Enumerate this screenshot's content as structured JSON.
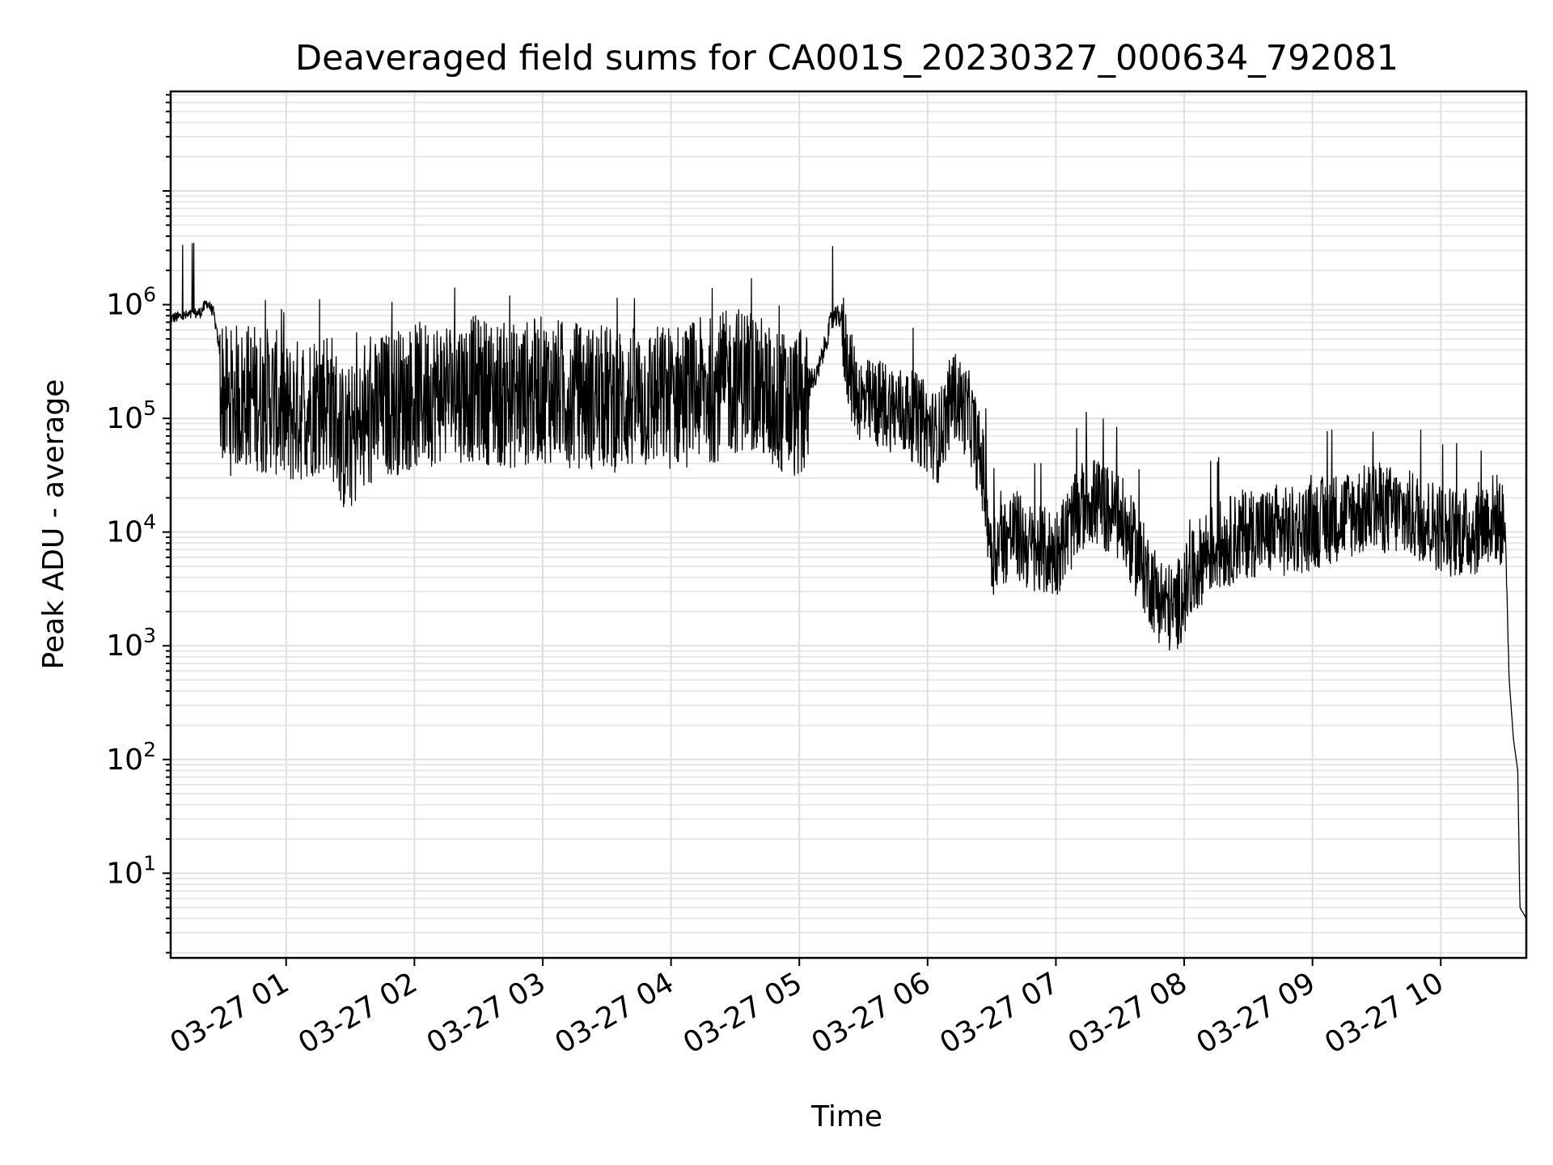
{
  "chart_data": {
    "type": "line",
    "title": "Deaveraged field sums for CA001S_20230327_000634_792081",
    "xlabel": "Time",
    "ylabel": "Peak ADU - average",
    "yscale": "log",
    "ylim": [
      1.8,
      75000000
    ],
    "xlim": [
      "03-27 00:06",
      "03-27 10:40"
    ],
    "grid": true,
    "line_color": "#000000",
    "x_tick_labels": [
      "03-27 01",
      "03-27 02",
      "03-27 03",
      "03-27 04",
      "03-27 05",
      "03-27 06",
      "03-27 07",
      "03-27 08",
      "03-27 09",
      "03-27 10"
    ],
    "y_tick_labels": [
      {
        "base": "10",
        "exp": "1",
        "value": 10
      },
      {
        "base": "10",
        "exp": "2",
        "value": 100
      },
      {
        "base": "10",
        "exp": "3",
        "value": 1000
      },
      {
        "base": "10",
        "exp": "4",
        "value": 10000
      },
      {
        "base": "10",
        "exp": "5",
        "value": 100000
      },
      {
        "base": "10",
        "exp": "6",
        "value": 1000000
      }
    ],
    "series": [
      {
        "x": [
          "03-27 00:06",
          "03-27 00:15",
          "03-27 00:20",
          "03-27 00:23",
          "03-27 00:26",
          "03-27 00:29",
          "03-27 00:33",
          "03-27 00:36",
          "03-27 00:40",
          "03-27 00:43",
          "03-27 00:46",
          "03-27 00:49",
          "03-27 00:53",
          "03-27 01:00",
          "03-27 01:10",
          "03-27 01:20",
          "03-27 01:27",
          "03-27 01:35",
          "03-27 01:45",
          "03-27 02:00",
          "03-27 02:15",
          "03-27 02:30",
          "03-27 02:45",
          "03-27 03:00",
          "03-27 03:20",
          "03-27 03:40",
          "03-27 04:00",
          "03-27 04:20",
          "03-27 04:35",
          "03-27 04:40",
          "03-27 04:45",
          "03-27 04:55",
          "03-27 05:08",
          "03-27 05:15",
          "03-27 05:20",
          "03-27 05:25",
          "03-27 05:30",
          "03-27 05:40",
          "03-27 05:55",
          "03-27 06:05",
          "03-27 06:12",
          "03-27 06:20",
          "03-27 06:26",
          "03-27 06:30",
          "03-27 06:40",
          "03-27 06:50",
          "03-27 07:00",
          "03-27 07:15",
          "03-27 07:30",
          "03-27 07:40",
          "03-27 07:48",
          "03-27 07:55",
          "03-27 08:10",
          "03-27 08:30",
          "03-27 08:50",
          "03-27 09:10",
          "03-27 09:30",
          "03-27 09:50",
          "03-27 10:05",
          "03-27 10:15",
          "03-27 10:23",
          "03-27 10:27",
          "03-27 10:30",
          "03-27 10:32",
          "03-27 10:34",
          "03-27 10:36",
          "03-27 10:37",
          "03-27 10:40"
        ],
        "values": [
          800000,
          850000,
          900000,
          1100000,
          900000,
          400000,
          250000,
          300000,
          280000,
          320000,
          300000,
          260000,
          300000,
          200000,
          250000,
          300000,
          120000,
          150000,
          250000,
          300000,
          350000,
          350000,
          300000,
          350000,
          300000,
          280000,
          300000,
          350000,
          450000,
          400000,
          300000,
          250000,
          250000,
          800000,
          900000,
          300000,
          200000,
          200000,
          150000,
          100000,
          250000,
          150000,
          50000,
          10000,
          15000,
          10000,
          10000,
          30000,
          20000,
          8000,
          4000,
          3000,
          10000,
          15000,
          15000,
          20000,
          25000,
          20000,
          15000,
          15000,
          20000,
          20000,
          15000,
          500,
          150,
          80,
          5,
          4
        ]
      }
    ]
  }
}
